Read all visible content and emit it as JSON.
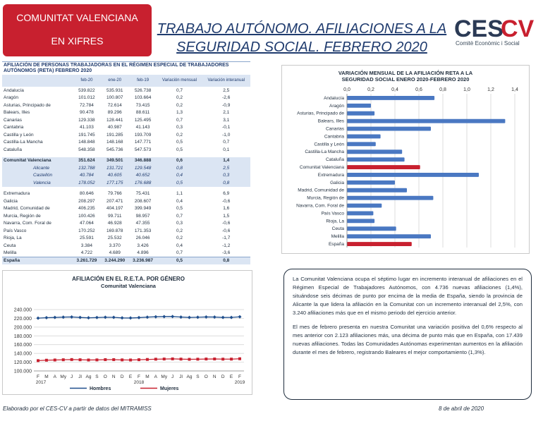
{
  "badge": {
    "line1": "COMUNITAT VALENCIANA",
    "line2": "EN XIFRES"
  },
  "title": {
    "line1": "TRABAJO AUTÓNOMO. AFILIACIONES A LA",
    "line2": "SEGURIDAD SOCIAL. FEBRERO 2020"
  },
  "logo": {
    "text_a": "CES",
    "text_b": "CV",
    "subtitle": "Comitè Econòmic i Social",
    "brand_color": "#2b3a55",
    "accent_color": "#c8202f"
  },
  "table": {
    "title": "AFILIACIÓN DE PERSONAS TRABAJADORAS EN EL RÉGIMEN ESPECIAL DE TRABAJADORES AUTÓNOMOS (RETA) FEBRERO 2020",
    "columns": [
      "",
      "feb-20",
      "ene-20",
      "feb-19",
      "Variación mensual",
      "Variación interanual"
    ],
    "rows": [
      {
        "type": "normal",
        "cells": [
          "Andalucía",
          "539.822",
          "535.931",
          "526.738",
          "0,7",
          "2,5"
        ]
      },
      {
        "type": "normal",
        "cells": [
          "Aragón",
          "101.012",
          "100.807",
          "103.664",
          "0,2",
          "-2,6"
        ]
      },
      {
        "type": "normal",
        "cells": [
          "Asturias, Principado de",
          "72.784",
          "72.614",
          "73.415",
          "0,2",
          "-0,9"
        ]
      },
      {
        "type": "normal",
        "cells": [
          "Balears, Illes",
          "90.478",
          "89.296",
          "88.611",
          "1,3",
          "2,1"
        ]
      },
      {
        "type": "normal",
        "cells": [
          "Canarias",
          "129.338",
          "128.441",
          "125.495",
          "0,7",
          "3,1"
        ]
      },
      {
        "type": "normal",
        "cells": [
          "Cantabria",
          "41.103",
          "40.987",
          "41.143",
          "0,3",
          "-0,1"
        ]
      },
      {
        "type": "normal",
        "cells": [
          "Castilla y León",
          "191.745",
          "191.285",
          "193.709",
          "0,2",
          "-1,0"
        ]
      },
      {
        "type": "normal",
        "cells": [
          "Castilla-La Mancha",
          "148.848",
          "148.168",
          "147.771",
          "0,5",
          "0,7"
        ]
      },
      {
        "type": "normal",
        "cells": [
          "Cataluña",
          "548.358",
          "545.736",
          "547.573",
          "0,5",
          "0,1"
        ]
      },
      {
        "type": "gap",
        "cells": [
          "",
          "",
          "",
          "",
          "",
          ""
        ]
      },
      {
        "type": "cv",
        "cells": [
          "Comunitat Valenciana",
          "351.624",
          "349.501",
          "346.888",
          "0,6",
          "1,4"
        ]
      },
      {
        "type": "prov",
        "cells": [
          "Alicante",
          "132.788",
          "131.721",
          "129.548",
          "0,8",
          "2,5"
        ]
      },
      {
        "type": "prov",
        "cells": [
          "Castellón",
          "40.784",
          "40.605",
          "40.652",
          "0,4",
          "0,3"
        ]
      },
      {
        "type": "prov",
        "cells": [
          "Valencia",
          "178.052",
          "177.175",
          "176.688",
          "0,5",
          "0,8"
        ]
      },
      {
        "type": "gap",
        "cells": [
          "",
          "",
          "",
          "",
          "",
          ""
        ]
      },
      {
        "type": "normal",
        "cells": [
          "Extremadura",
          "80.646",
          "79.766",
          "75.431",
          "1,1",
          "6,9"
        ]
      },
      {
        "type": "normal",
        "cells": [
          "Galicia",
          "208.297",
          "207.471",
          "208.607",
          "0,4",
          "-0,6"
        ]
      },
      {
        "type": "normal",
        "cells": [
          "Madrid, Comunidad de",
          "406.235",
          "404.197",
          "399.949",
          "0,5",
          "1,6"
        ]
      },
      {
        "type": "normal",
        "cells": [
          "Murcia, Región de",
          "100.426",
          "99.711",
          "98.957",
          "0,7",
          "1,5"
        ]
      },
      {
        "type": "normal",
        "cells": [
          "Navarra, Com. Foral de",
          "47.064",
          "46.928",
          "47.355",
          "0,3",
          "-0,6"
        ]
      },
      {
        "type": "normal",
        "cells": [
          "País Vasco",
          "170.252",
          "169.878",
          "171.353",
          "0,2",
          "-0,6"
        ]
      },
      {
        "type": "normal",
        "cells": [
          "Rioja, La",
          "25.591",
          "25.532",
          "26.046",
          "0,2",
          "-1,7"
        ]
      },
      {
        "type": "normal",
        "cells": [
          "Ceuta",
          "3.384",
          "3.370",
          "3.426",
          "0,4",
          "-1,2"
        ]
      },
      {
        "type": "normal",
        "cells": [
          "Melilla",
          "4.722",
          "4.689",
          "4.896",
          "0,7",
          "-3,6"
        ]
      },
      {
        "type": "esp",
        "cells": [
          "España",
          "3.261.729",
          "3.244.290",
          "3.236.987",
          "0,5",
          "0,8"
        ]
      }
    ]
  },
  "chart_data": [
    {
      "type": "bar",
      "orientation": "horizontal",
      "title": "VARIACIÓN MENSUAL DE LA AFILIACIÓN RETA A LA SEGURIDAD SOCIAL ENERO 2020-FEBRERO 2020",
      "ticks": [
        "0,0",
        "0,2",
        "0,4",
        "0,6",
        "0,8",
        "1,0",
        "1,2",
        "1,4"
      ],
      "xlim": [
        0,
        1.4
      ],
      "categories": [
        "Andalucía",
        "Aragón",
        "Asturias, Principado de",
        "Balears, Illes",
        "Canarias",
        "Cantabria",
        "Castilla y León",
        "Castilla-La Mancha",
        "Cataluña",
        "Comunitat Valenciana",
        "Extremadura",
        "Galicia",
        "Madrid, Comunidad de",
        "Murcia, Región de",
        "Navarra, Com. Foral de",
        "País Vasco",
        "Rioja, La",
        "Ceuta",
        "Melilla",
        "España"
      ],
      "values": [
        0.73,
        0.2,
        0.23,
        1.32,
        0.7,
        0.28,
        0.24,
        0.46,
        0.48,
        0.61,
        1.1,
        0.4,
        0.5,
        0.72,
        0.29,
        0.22,
        0.23,
        0.41,
        0.7,
        0.54
      ],
      "highlight": [
        "Comunitat Valenciana",
        "España"
      ],
      "bar_color": "#4a78c2",
      "highlight_color": "#c8202f",
      "grid": true
    },
    {
      "type": "line",
      "title": "AFILIACIÓN EN EL R.E.T.A. POR GÉNERO",
      "subtitle": "Comunitat Valenciana",
      "x": [
        "F",
        "M",
        "A",
        "My",
        "J",
        "Jl",
        "Ag",
        "S",
        "O",
        "N",
        "D",
        "E",
        "F",
        "M",
        "A",
        "My",
        "J",
        "Jl",
        "Ag",
        "S",
        "O",
        "N",
        "D",
        "E",
        "F"
      ],
      "year_labels": [
        "2017",
        "2018",
        "2019"
      ],
      "yticks": [
        "100.000",
        "120.000",
        "140.000",
        "160.000",
        "180.000",
        "200.000",
        "220.000",
        "240.000"
      ],
      "ylim": [
        100000,
        240000
      ],
      "grid": true,
      "legend_position": "bottom",
      "series": [
        {
          "name": "Hombres",
          "color": "#1f4e8c",
          "values": [
            220500,
            221500,
            222000,
            222800,
            223200,
            222000,
            221200,
            221800,
            222500,
            222300,
            221000,
            220800,
            221600,
            222800,
            223600,
            224000,
            224200,
            223000,
            222000,
            222500,
            223200,
            223000,
            222000,
            222100,
            223500
          ]
        },
        {
          "name": "Mujeres",
          "color": "#c8202f",
          "values": [
            123500,
            124500,
            125000,
            125500,
            126000,
            125500,
            125000,
            125200,
            125800,
            125800,
            125200,
            125000,
            125600,
            126200,
            126800,
            127200,
            127500,
            127000,
            126500,
            126800,
            127200,
            127300,
            126900,
            127000,
            127800
          ]
        }
      ]
    }
  ],
  "text": {
    "p1": "La Comunitat Valenciana ocupa el séptimo lugar en incremento interanual de afiliaciones en el Régimen Especial de Trabajadores Autónomos, con 4.736 nuevas afiliaciones (1,4%), situándose seis décimas de punto por encima de la media de España, siendo la provincia de Alicante la que lidera la afiliación en la Comunitat con un incremento interanual del 2,5%, con 3.240 afiliaciones más que en el mismo periodo del ejercicio anterior.",
    "p2": "El mes de febrero presenta en nuestra Comunitat una variación positiva del 0,6% respecto al mes anterior con 2.123 afiliaciones más, una décima de punto más que en España, con 17.439 nuevas afiliaciones. Todas las Comunidades Autónomas experimentan aumentos en la afiliación durante el mes de febrero, registrando Baleares el mejor comportamiento (1,3%)."
  },
  "footer": {
    "source": "Elaborado por el CES-CV a partir de datos del MITRAMISS",
    "date": "8  de abril de 2020"
  }
}
